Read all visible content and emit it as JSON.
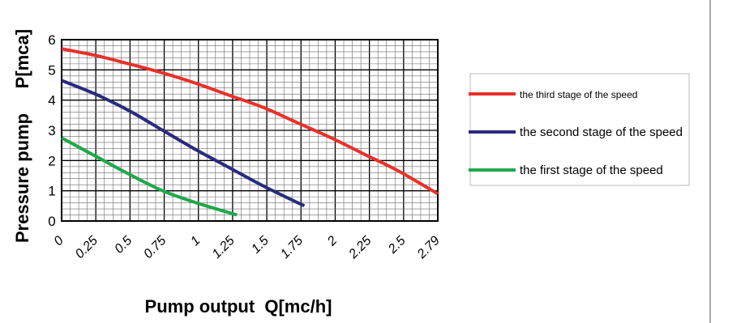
{
  "chart_data": {
    "type": "line",
    "title": "",
    "xlabel": "Pump output  Q[mc/h]",
    "ylabel": "Pressure pump     P[mca]",
    "x_tick_labels": [
      "0",
      "0.25",
      "0.5",
      "0.75",
      "1",
      "1.25",
      "1.5",
      "1.75",
      "2",
      "2.25",
      "2.5",
      "2.79"
    ],
    "y_tick_labels": [
      "0",
      "1",
      "2",
      "3",
      "4",
      "5",
      "6"
    ],
    "xlim": [
      0,
      2.79
    ],
    "ylim": [
      0,
      6
    ],
    "grid": true,
    "legend_position": "right",
    "series": [
      {
        "name": "the third stage  of  the speed",
        "color": "#e8312a",
        "x": [
          0,
          0.25,
          0.5,
          0.75,
          1,
          1.25,
          1.5,
          1.75,
          2,
          2.25,
          2.5,
          2.79
        ],
        "y": [
          5.7,
          5.48,
          5.2,
          4.9,
          4.55,
          4.15,
          3.75,
          3.25,
          2.75,
          2.2,
          1.65,
          0.9
        ]
      },
      {
        "name": "the second  stage  of the speed",
        "color": "#2a2a7e",
        "x": [
          0,
          0.25,
          0.5,
          0.75,
          1,
          1.25,
          1.5,
          1.8
        ],
        "y": [
          4.65,
          4.2,
          3.65,
          3.0,
          2.35,
          1.75,
          1.15,
          0.5
        ]
      },
      {
        "name": "the first stage  of the speed",
        "color": "#1fa84a",
        "x": [
          0,
          0.25,
          0.5,
          0.75,
          1,
          1.3
        ],
        "y": [
          2.75,
          2.15,
          1.55,
          1.0,
          0.6,
          0.2
        ]
      }
    ]
  }
}
